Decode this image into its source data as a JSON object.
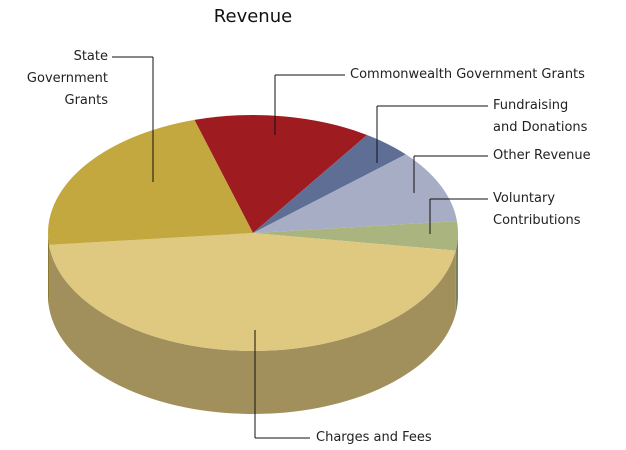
{
  "chart_data": {
    "type": "pie3d",
    "title": "Revenue",
    "categories": [
      "Commonwealth Government Grants",
      "Fundraising and Donations",
      "Other Revenue",
      "Voluntary Contributions",
      "Charges and Fees",
      "State Government Grants"
    ],
    "values": [
      14,
      4,
      10,
      4,
      46,
      22
    ],
    "colors": [
      "#9e1b20",
      "#5e6e95",
      "#a7adc4",
      "#a9b47f",
      "#dfc880",
      "#c2a83e"
    ]
  }
}
